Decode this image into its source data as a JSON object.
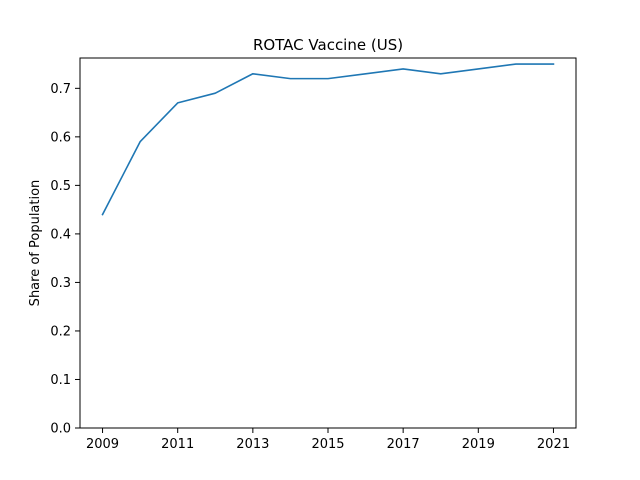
{
  "chart_data": {
    "type": "line",
    "title": "ROTAC Vaccine (US)",
    "xlabel": "",
    "ylabel": "Share of Population",
    "x": [
      2009,
      2010,
      2011,
      2012,
      2013,
      2014,
      2015,
      2016,
      2017,
      2018,
      2019,
      2020,
      2021
    ],
    "series": [
      {
        "values": [
          0.44,
          0.59,
          0.67,
          0.69,
          0.73,
          0.72,
          0.72,
          0.73,
          0.74,
          0.73,
          0.74,
          0.75,
          0.75
        ],
        "color": "#1f77b4"
      }
    ],
    "xlim": [
      2008.4,
      2021.6
    ],
    "ylim": [
      0.0,
      0.7625
    ],
    "xticks": [
      2009,
      2011,
      2013,
      2015,
      2017,
      2019,
      2021
    ],
    "xtick_labels": [
      "2009",
      "2011",
      "2013",
      "2015",
      "2017",
      "2019",
      "2021"
    ],
    "yticks": [
      0.0,
      0.1,
      0.2,
      0.3,
      0.4,
      0.5,
      0.6,
      0.7
    ],
    "ytick_labels": [
      "0.0",
      "0.1",
      "0.2",
      "0.3",
      "0.4",
      "0.5",
      "0.6",
      "0.7"
    ],
    "grid": false,
    "legend": false
  }
}
